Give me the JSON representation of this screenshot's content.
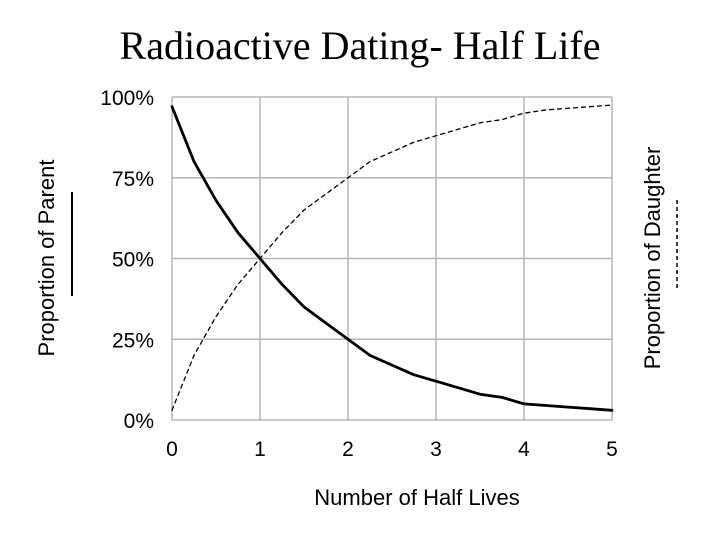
{
  "chart_data": {
    "type": "line",
    "title": "Radioactive Dating- Half Life",
    "xlabel": "Number of Half Lives",
    "ylabel": "Proportion of Parent",
    "y2label": "Proportion of Daughter",
    "xlim": [
      0,
      5
    ],
    "ylim": [
      0,
      100
    ],
    "x_ticks": [
      "0",
      "1",
      "2",
      "3",
      "4",
      "5"
    ],
    "y_ticks": [
      "0%",
      "25%",
      "50%",
      "75%",
      "100%"
    ],
    "grid": true,
    "series": [
      {
        "style": "solid",
        "x": [
          0,
          0.25,
          0.5,
          0.75,
          1,
          1.25,
          1.5,
          1.75,
          2,
          2.25,
          2.5,
          2.75,
          3,
          3.25,
          3.5,
          3.75,
          4,
          4.25,
          4.5,
          4.75,
          5
        ],
        "y": [
          97,
          80,
          68,
          58,
          50,
          42,
          35,
          30,
          25,
          20,
          17,
          14,
          12,
          10,
          8,
          7,
          5,
          4.5,
          4,
          3.5,
          3
        ]
      },
      {
        "style": "dashed",
        "x": [
          0,
          0.25,
          0.5,
          0.75,
          1,
          1.25,
          1.5,
          1.75,
          2,
          2.25,
          2.5,
          2.75,
          3,
          3.25,
          3.5,
          3.75,
          4,
          4.25,
          4.5,
          4.75,
          5
        ],
        "y": [
          3,
          20,
          32,
          42,
          50,
          58,
          65,
          70,
          75,
          80,
          83,
          86,
          88,
          90,
          92,
          93,
          95,
          96,
          96.5,
          97,
          97.5
        ]
      }
    ]
  }
}
